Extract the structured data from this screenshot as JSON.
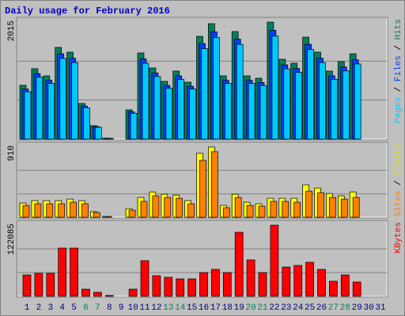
{
  "chart_data": [
    {
      "type": "bar",
      "title": "Daily usage for February 2016",
      "ylim": [
        0,
        2015
      ],
      "yticks": [
        2015
      ],
      "grid_divisions": 3,
      "legend_separator": " / ",
      "series": [
        {
          "name": "Pages",
          "color": "#00c8ff",
          "values": [
            815,
            1067,
            958,
            1390,
            1318,
            539,
            203,
            12,
            0,
            444,
            1306,
            1078,
            875,
            1030,
            862,
            1558,
            1749,
            958,
            1630,
            958,
            922,
            1773,
            1210,
            1150,
            1545,
            1318,
            1030,
            1174,
            1294,
            0,
            0
          ]
        },
        {
          "name": "Files",
          "color": "#0040ff",
          "values": [
            862,
            1127,
            1013,
            1468,
            1393,
            570,
            215,
            13,
            0,
            469,
            1380,
            1139,
            924,
            1089,
            911,
            1646,
            1849,
            1013,
            1722,
            1013,
            975,
            1874,
            1279,
            1216,
            1633,
            1393,
            1089,
            1241,
            1367,
            0,
            0
          ]
        },
        {
          "name": "Hits",
          "color": "#00805c",
          "values": [
            926,
            1212,
            1089,
            1579,
            1498,
            613,
            231,
            14,
            0,
            504,
            1484,
            1225,
            994,
            1171,
            980,
            1770,
            1988,
            1089,
            1852,
            1089,
            1048,
            2015,
            1375,
            1307,
            1756,
            1498,
            1171,
            1334,
            1470,
            0,
            0
          ]
        }
      ]
    },
    {
      "type": "bar",
      "ylim": [
        0,
        910
      ],
      "yticks": [
        910
      ],
      "grid_divisions": 3,
      "legend_separator": " / ",
      "series": [
        {
          "name": "Sites",
          "color": "#ff8000",
          "values": [
            153,
            174,
            174,
            174,
            194,
            174,
            61,
            10,
            0,
            92,
            205,
            276,
            256,
            245,
            174,
            736,
            849,
            123,
            256,
            153,
            143,
            205,
            205,
            194,
            337,
            317,
            256,
            235,
            256,
            0,
            0
          ]
        },
        {
          "name": "Visits",
          "color": "#ffff00",
          "values": [
            184,
            215,
            215,
            215,
            235,
            215,
            72,
            10,
            0,
            112,
            256,
            327,
            297,
            286,
            215,
            828,
            910,
            153,
            297,
            194,
            174,
            245,
            245,
            245,
            419,
            378,
            307,
            276,
            327,
            0,
            0
          ]
        }
      ]
    },
    {
      "type": "bar",
      "ylim": [
        0,
        122085
      ],
      "yticks": [
        122085
      ],
      "grid_divisions": 3,
      "categories": [
        "1",
        "2",
        "3",
        "4",
        "5",
        "6",
        "7",
        "8",
        "9",
        "10",
        "11",
        "12",
        "13",
        "14",
        "15",
        "16",
        "17",
        "18",
        "19",
        "20",
        "21",
        "22",
        "23",
        "24",
        "25",
        "26",
        "27",
        "28",
        "29",
        "30",
        "31"
      ],
      "category_colors": [
        "#000080",
        "#000080",
        "#000080",
        "#000080",
        "#000080",
        "#00805c",
        "#00805c",
        "#000080",
        "#000080",
        "#000080",
        "#000080",
        "#000080",
        "#00805c",
        "#00805c",
        "#000080",
        "#000080",
        "#000080",
        "#000080",
        "#000080",
        "#00805c",
        "#00805c",
        "#000080",
        "#000080",
        "#000080",
        "#000080",
        "#000080",
        "#00805c",
        "#00805c",
        "#000080",
        "#000080",
        "#000080"
      ],
      "series": [
        {
          "name": "KBytes",
          "color": "#ff0000",
          "values": [
            36626,
            39339,
            39339,
            82747,
            82747,
            12209,
            6783,
            1357,
            0,
            12209,
            61043,
            35269,
            32556,
            29843,
            29843,
            40696,
            46121,
            40696,
            109877,
            62399,
            40696,
            122085,
            50191,
            52904,
            58330,
            46121,
            25774,
            36626,
            24417,
            0,
            0
          ]
        }
      ]
    }
  ]
}
